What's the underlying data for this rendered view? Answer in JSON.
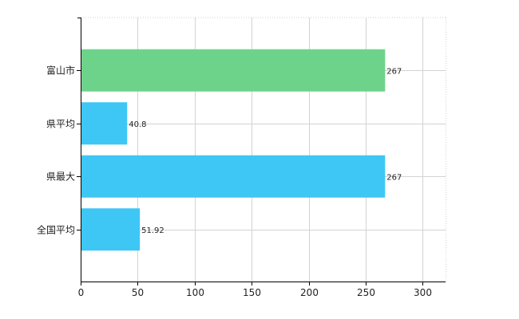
{
  "chart_data": {
    "type": "bar",
    "orientation": "horizontal",
    "categories": [
      "富山市",
      "県平均",
      "県最大",
      "全国平均"
    ],
    "values": [
      267,
      40.8,
      267,
      51.92
    ],
    "value_labels": [
      "267",
      "40.8",
      "267",
      "51.92"
    ],
    "bar_colors": [
      "#6dd38a",
      "#3ec6f5",
      "#3ec6f5",
      "#3ec6f5"
    ],
    "xlim": [
      0,
      320
    ],
    "xticks": [
      0,
      50,
      100,
      150,
      200,
      250,
      300
    ],
    "grid": true,
    "grid_style": "dotted",
    "legend": "none"
  }
}
